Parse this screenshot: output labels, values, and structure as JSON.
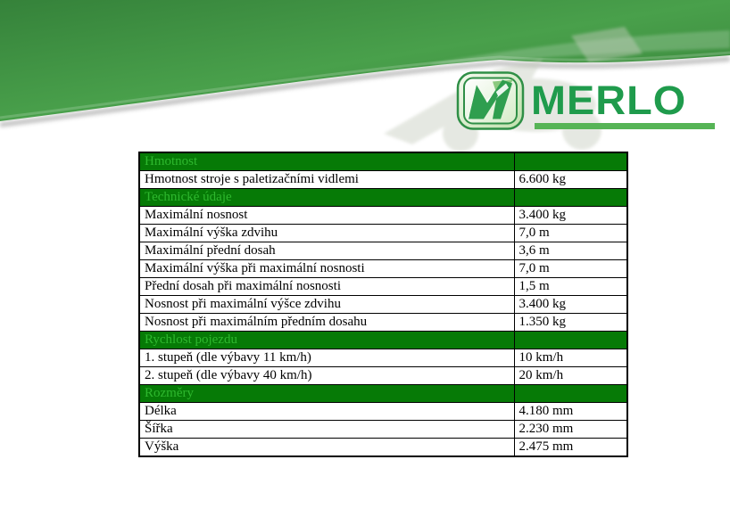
{
  "banner": {
    "logo": {
      "wordmark": "MERLO",
      "monogram_icon": "merlo-m-monogram"
    },
    "colors": {
      "banner_green_dark": "#35823a",
      "banner_green_light": "#49a04b",
      "wordmark_green": "#1f9b4c",
      "underline_green": "#56b456",
      "badge_border_green": "#2f8f46",
      "badge_fill_light": "#d6ecc8",
      "monogram_green": "#2f9e4f",
      "monogram_light_green": "#8bc97f"
    }
  },
  "spec_table": {
    "colors": {
      "section_header_bg": "#067a06",
      "section_header_text": "#2eb82e",
      "row_bg": "#ffffff",
      "row_text": "#000000",
      "border": "#000000"
    },
    "sections": [
      {
        "title": "Hmotnost",
        "rows": [
          {
            "label": "Hmotnost stroje s paletizačními vidlemi",
            "value": "6.600 kg"
          }
        ]
      },
      {
        "title": "Technické údaje",
        "rows": [
          {
            "label": "Maximální nosnost",
            "value": "3.400 kg"
          },
          {
            "label": "Maximální výška zdvihu",
            "value": "7,0 m"
          },
          {
            "label": "Maximální přední dosah",
            "value": "3,6 m"
          },
          {
            "label": "Maximální výška při maximální nosnosti",
            "value": "7,0 m"
          },
          {
            "label": "Přední dosah při maximální nosnosti",
            "value": "1,5 m"
          },
          {
            "label": "Nosnost při maximální výšce zdvihu",
            "value": "3.400 kg"
          },
          {
            "label": "Nosnost při maximálním předním dosahu",
            "value": "1.350 kg"
          }
        ]
      },
      {
        "title": "Rychlost pojezdu",
        "rows": [
          {
            "label": "1. stupeň (dle výbavy 11 km/h)",
            "value": "10 km/h"
          },
          {
            "label": "2. stupeň (dle výbavy 40 km/h)",
            "value": "20 km/h"
          }
        ]
      },
      {
        "title": "Rozměry",
        "rows": [
          {
            "label": "Délka",
            "value": "4.180 mm"
          },
          {
            "label": "Šířka",
            "value": "2.230 mm"
          },
          {
            "label": "Výška",
            "value": "2.475 mm"
          }
        ]
      }
    ]
  }
}
